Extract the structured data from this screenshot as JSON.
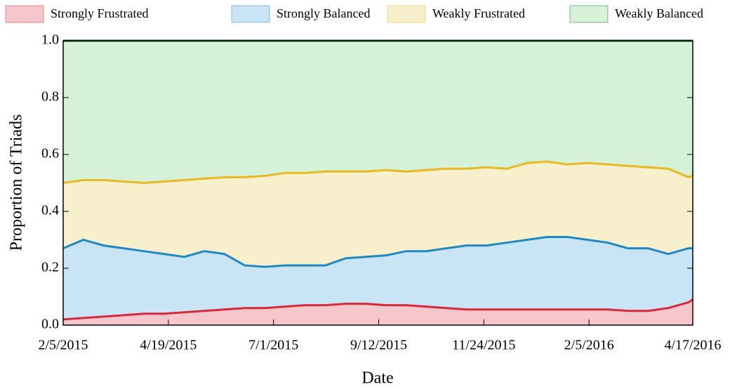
{
  "chart_data": {
    "type": "stacked-area",
    "x_label": "Date",
    "y_label": "Proportion of Triads",
    "x": [
      "2015-02-05",
      "2015-02-19",
      "2015-03-05",
      "2015-03-19",
      "2015-04-02",
      "2015-04-16",
      "2015-04-30",
      "2015-05-14",
      "2015-05-28",
      "2015-06-11",
      "2015-06-25",
      "2015-07-09",
      "2015-07-23",
      "2015-08-06",
      "2015-08-20",
      "2015-09-03",
      "2015-09-17",
      "2015-10-01",
      "2015-10-15",
      "2015-10-29",
      "2015-11-12",
      "2015-11-26",
      "2015-12-10",
      "2015-12-24",
      "2016-01-07",
      "2016-01-21",
      "2016-02-04",
      "2016-02-18",
      "2016-03-03",
      "2016-03-17",
      "2016-03-31",
      "2016-04-14",
      "2016-04-17"
    ],
    "series": [
      {
        "name": "Strongly Frustrated",
        "color": "#d62a3c",
        "fill": "#f5c6cc",
        "values": [
          0.02,
          0.025,
          0.03,
          0.035,
          0.04,
          0.04,
          0.045,
          0.05,
          0.055,
          0.06,
          0.06,
          0.065,
          0.07,
          0.07,
          0.075,
          0.075,
          0.07,
          0.07,
          0.065,
          0.06,
          0.055,
          0.055,
          0.055,
          0.055,
          0.055,
          0.055,
          0.055,
          0.055,
          0.05,
          0.05,
          0.06,
          0.08,
          0.09
        ]
      },
      {
        "name": "Strongly Balanced",
        "color": "#1f88c4",
        "fill": "#c9e4f4",
        "values": [
          0.25,
          0.275,
          0.25,
          0.235,
          0.22,
          0.21,
          0.195,
          0.21,
          0.195,
          0.15,
          0.145,
          0.145,
          0.14,
          0.14,
          0.16,
          0.165,
          0.175,
          0.19,
          0.195,
          0.21,
          0.225,
          0.225,
          0.235,
          0.245,
          0.255,
          0.255,
          0.245,
          0.235,
          0.22,
          0.22,
          0.19,
          0.19,
          0.18
        ]
      },
      {
        "name": "Weakly Frustrated",
        "color": "#e8b923",
        "fill": "#f8efcc",
        "values": [
          0.23,
          0.21,
          0.23,
          0.235,
          0.24,
          0.255,
          0.27,
          0.255,
          0.27,
          0.31,
          0.32,
          0.325,
          0.325,
          0.33,
          0.305,
          0.3,
          0.3,
          0.28,
          0.285,
          0.28,
          0.27,
          0.275,
          0.26,
          0.27,
          0.265,
          0.255,
          0.27,
          0.275,
          0.29,
          0.285,
          0.3,
          0.25,
          0.255
        ]
      },
      {
        "name": "Weakly Balanced",
        "color": "#1e6b1e",
        "fill": "#d5f2d8",
        "values": [
          0.5,
          0.49,
          0.49,
          0.495,
          0.5,
          0.495,
          0.49,
          0.485,
          0.48,
          0.48,
          0.475,
          0.465,
          0.465,
          0.46,
          0.46,
          0.46,
          0.455,
          0.46,
          0.455,
          0.45,
          0.45,
          0.445,
          0.45,
          0.43,
          0.425,
          0.435,
          0.43,
          0.435,
          0.44,
          0.445,
          0.45,
          0.48,
          0.475
        ]
      }
    ],
    "xlim": [
      "2015-02-05",
      "2016-04-17"
    ],
    "xticks": [
      {
        "value": "2015-02-05",
        "label": "2/5/2015"
      },
      {
        "value": "2015-04-19",
        "label": "4/19/2015"
      },
      {
        "value": "2015-07-01",
        "label": "7/1/2015"
      },
      {
        "value": "2015-09-12",
        "label": "9/12/2015"
      },
      {
        "value": "2015-11-24",
        "label": "11/24/2015"
      },
      {
        "value": "2016-02-05",
        "label": "2/5/2016"
      },
      {
        "value": "2016-04-17",
        "label": "4/17/2016"
      }
    ],
    "ylim": [
      0,
      1
    ],
    "yticks": [
      {
        "value": 0,
        "label": "0.0"
      },
      0.2,
      0.4,
      0.6,
      0.8,
      {
        "value": 1,
        "label": "1.0"
      }
    ],
    "legend": "top"
  }
}
